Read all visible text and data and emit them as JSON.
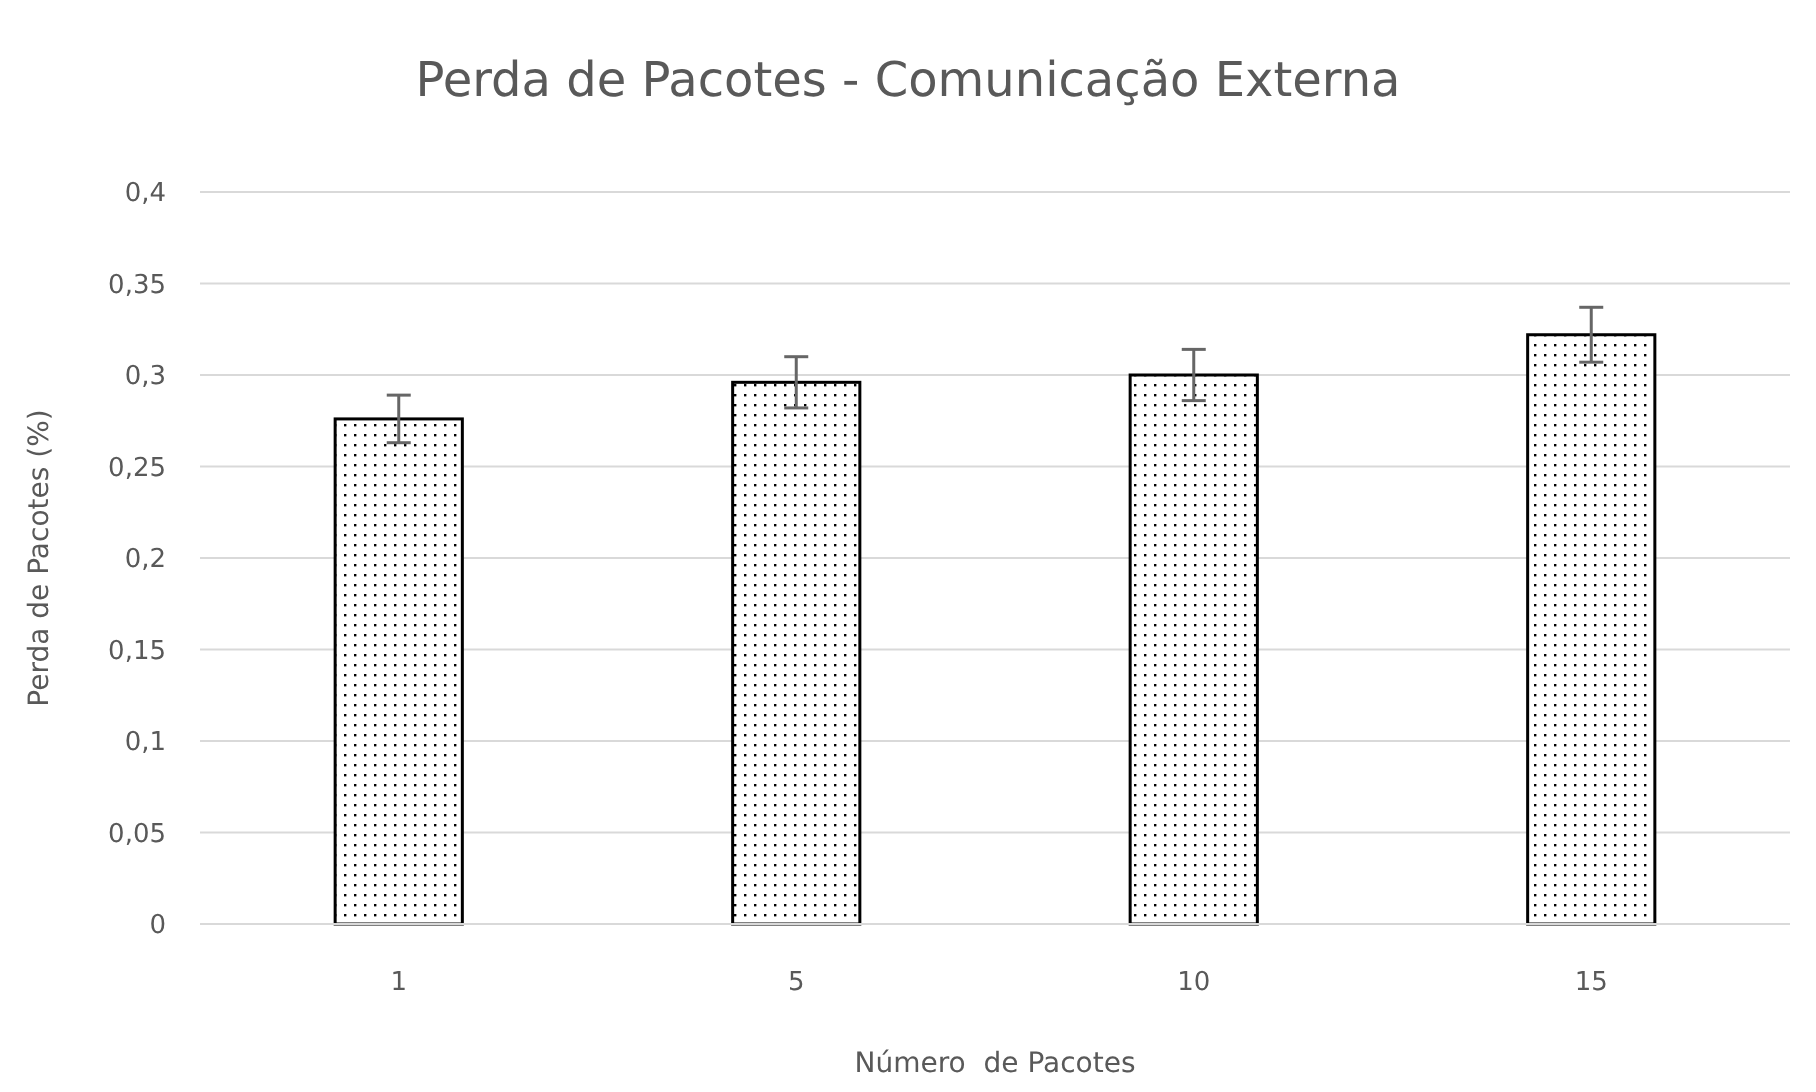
{
  "chart_data": {
    "type": "bar",
    "title": "Perda de Pacotes - Comunicação Externa",
    "xlabel": "Número  de Pacotes",
    "ylabel": "Perda de Pacotes (%)",
    "categories": [
      "1",
      "5",
      "10",
      "15"
    ],
    "values": [
      0.276,
      0.296,
      0.3,
      0.322
    ],
    "errors": [
      0.013,
      0.014,
      0.014,
      0.015
    ],
    "color": "#000000",
    "ylim": [
      0,
      0.4
    ],
    "yticks": [
      {
        "value": 0,
        "label": "0"
      },
      {
        "value": 0.05,
        "label": "0,05"
      },
      {
        "value": 0.1,
        "label": "0,1"
      },
      {
        "value": 0.15,
        "label": "0,15"
      },
      {
        "value": 0.2,
        "label": "0,2"
      },
      {
        "value": 0.25,
        "label": "0,25"
      },
      {
        "value": 0.3,
        "label": "0,3"
      },
      {
        "value": 0.35,
        "label": "0,35"
      },
      {
        "value": 0.4,
        "label": "0,4"
      }
    ],
    "grid": "y"
  }
}
